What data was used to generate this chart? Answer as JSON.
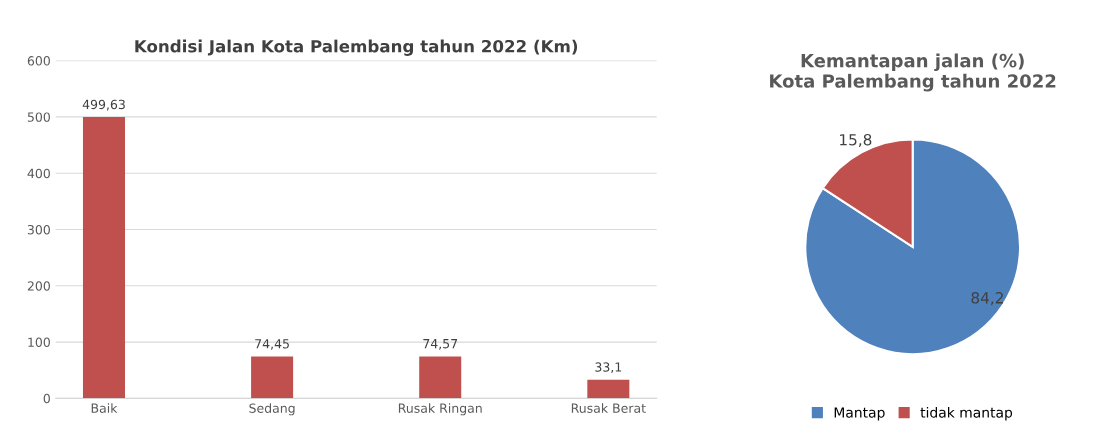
{
  "chart_data": [
    {
      "type": "bar",
      "title": "Kondisi Jalan Kota Palembang tahun 2022 (Km)",
      "categories": [
        "Baik",
        "Sedang",
        "Rusak Ringan",
        "Rusak Berat"
      ],
      "values": [
        499.63,
        74.45,
        74.57,
        33.1
      ],
      "value_labels": [
        "499,63",
        "74,45",
        "74,57",
        "33,1"
      ],
      "color": "#c0504d",
      "ylim": [
        0,
        600
      ],
      "yticks": [
        0,
        100,
        200,
        300,
        400,
        500,
        600
      ],
      "grid": "y",
      "legend": false
    },
    {
      "type": "pie",
      "title": "Kemantapan jalan (%)\nKota Palembang tahun 2022",
      "categories": [
        "Mantap",
        "tidak mantap"
      ],
      "values": [
        84.2,
        15.8
      ],
      "value_labels": [
        "84,2",
        "15,8"
      ],
      "colors": [
        "#4f81bd",
        "#c0504d"
      ],
      "legend": "bottom"
    }
  ]
}
